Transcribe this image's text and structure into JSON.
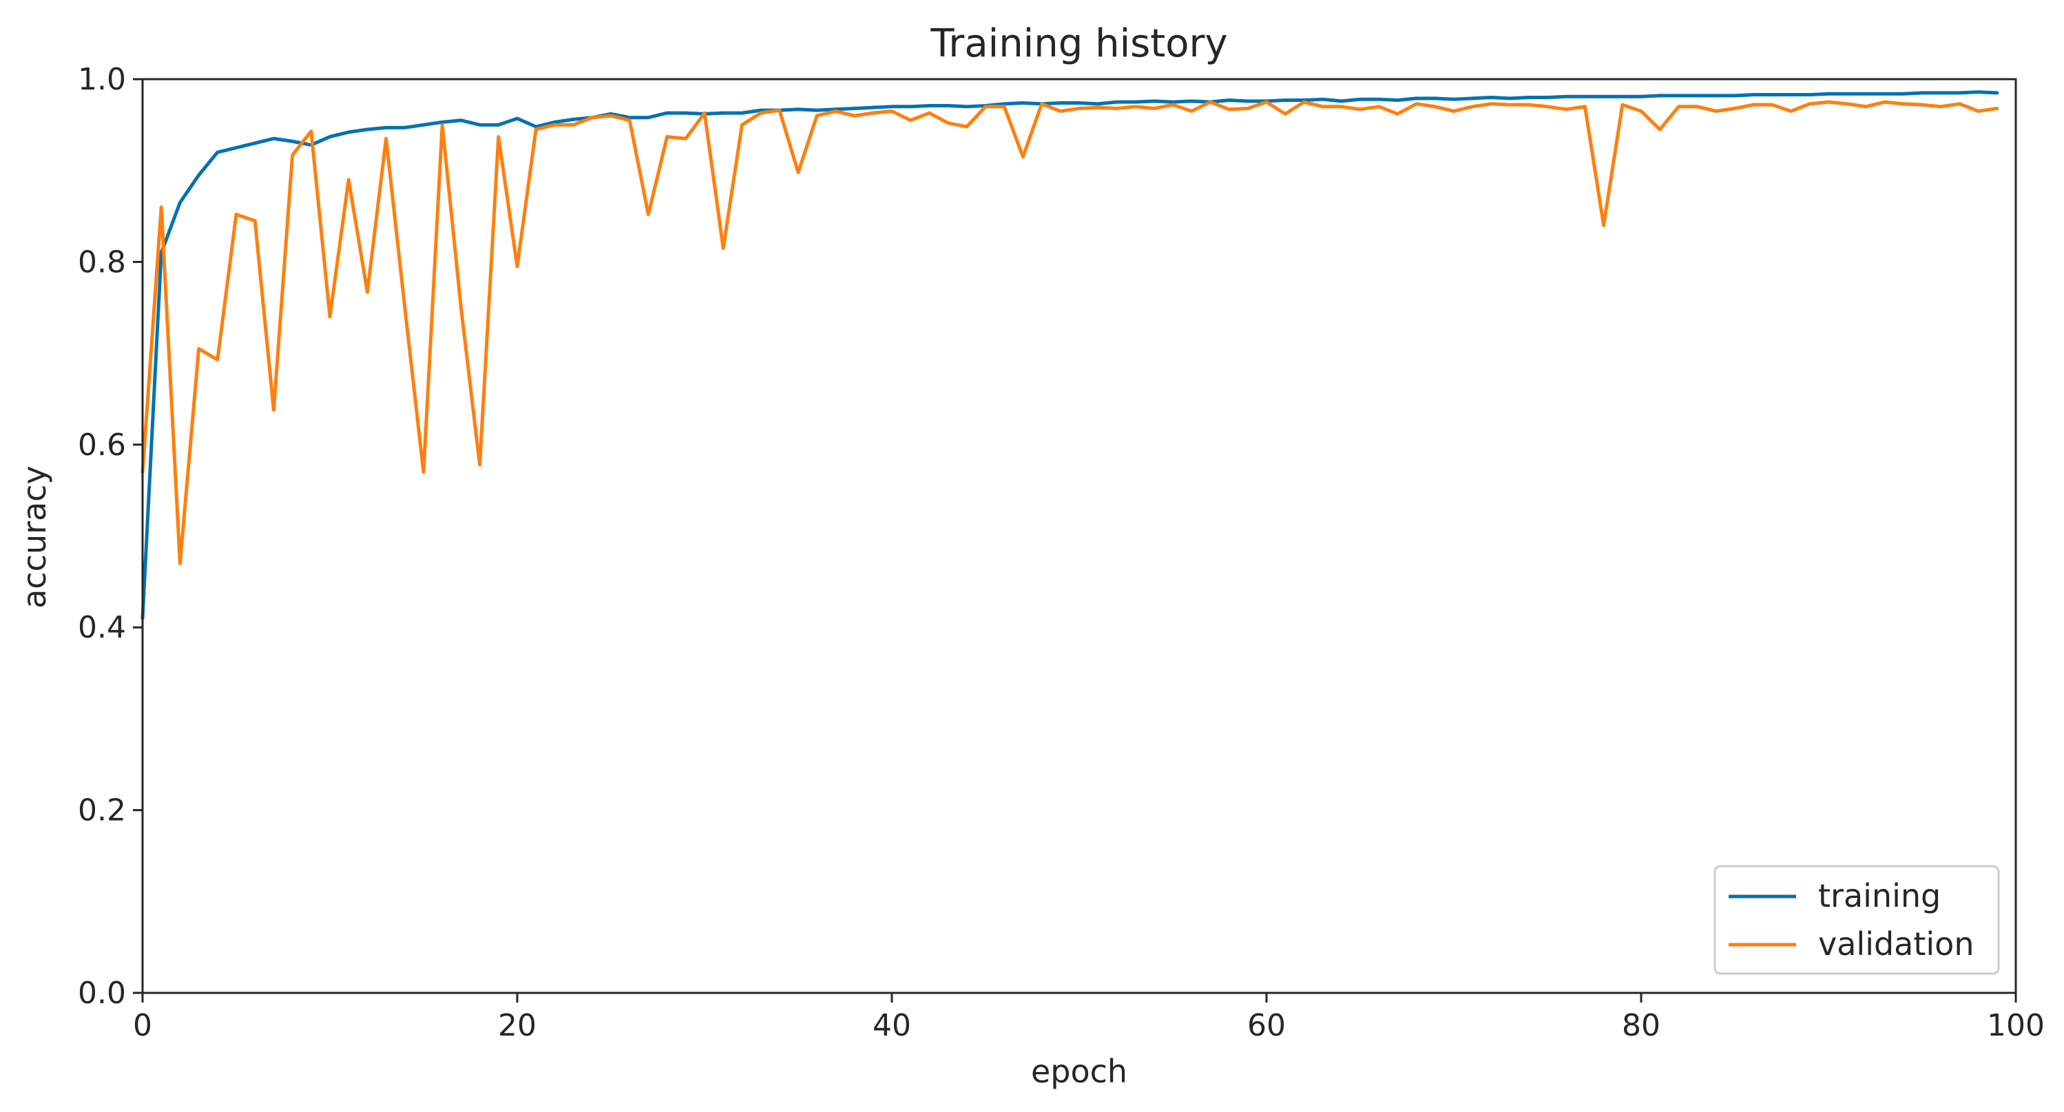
{
  "chart_data": {
    "type": "line",
    "title": "Training history",
    "xlabel": "epoch",
    "ylabel": "accuracy",
    "xlim": [
      0,
      100
    ],
    "ylim": [
      0.0,
      1.0
    ],
    "xticks": [
      0,
      20,
      40,
      60,
      80,
      100
    ],
    "xtick_labels": [
      "0",
      "20",
      "40",
      "60",
      "80",
      "100"
    ],
    "yticks": [
      0.0,
      0.2,
      0.4,
      0.6,
      0.8,
      1.0
    ],
    "ytick_labels": [
      "0.0",
      "0.2",
      "0.4",
      "0.6",
      "0.8",
      "1.0"
    ],
    "grid": false,
    "legend_position": "lower-right",
    "series": [
      {
        "name": "training",
        "color": "#0072b2",
        "values": [
          0.41,
          0.81,
          0.865,
          0.895,
          0.92,
          0.925,
          0.93,
          0.935,
          0.932,
          0.928,
          0.937,
          0.942,
          0.945,
          0.947,
          0.947,
          0.95,
          0.953,
          0.955,
          0.95,
          0.95,
          0.957,
          0.948,
          0.953,
          0.956,
          0.958,
          0.962,
          0.958,
          0.958,
          0.963,
          0.963,
          0.962,
          0.963,
          0.963,
          0.966,
          0.966,
          0.967,
          0.966,
          0.967,
          0.968,
          0.969,
          0.97,
          0.97,
          0.971,
          0.971,
          0.97,
          0.971,
          0.973,
          0.974,
          0.973,
          0.974,
          0.974,
          0.973,
          0.975,
          0.975,
          0.976,
          0.975,
          0.976,
          0.975,
          0.977,
          0.976,
          0.976,
          0.977,
          0.977,
          0.978,
          0.976,
          0.978,
          0.978,
          0.977,
          0.979,
          0.979,
          0.978,
          0.979,
          0.98,
          0.979,
          0.98,
          0.98,
          0.981,
          0.981,
          0.981,
          0.981,
          0.981,
          0.982,
          0.982,
          0.982,
          0.982,
          0.982,
          0.983,
          0.983,
          0.983,
          0.983,
          0.984,
          0.984,
          0.984,
          0.984,
          0.984,
          0.985,
          0.985,
          0.985,
          0.986,
          0.985
        ]
      },
      {
        "name": "validation",
        "color": "#ff7f0e",
        "values": [
          0.57,
          0.86,
          0.47,
          0.705,
          0.693,
          0.852,
          0.845,
          0.638,
          0.917,
          0.943,
          0.74,
          0.89,
          0.767,
          0.935,
          0.75,
          0.57,
          0.95,
          0.75,
          0.578,
          0.937,
          0.795,
          0.945,
          0.95,
          0.95,
          0.958,
          0.96,
          0.955,
          0.852,
          0.937,
          0.935,
          0.963,
          0.815,
          0.95,
          0.963,
          0.966,
          0.898,
          0.96,
          0.965,
          0.96,
          0.963,
          0.965,
          0.955,
          0.963,
          0.952,
          0.948,
          0.97,
          0.97,
          0.915,
          0.973,
          0.965,
          0.968,
          0.969,
          0.968,
          0.97,
          0.968,
          0.972,
          0.965,
          0.975,
          0.967,
          0.968,
          0.975,
          0.962,
          0.975,
          0.97,
          0.97,
          0.967,
          0.97,
          0.962,
          0.973,
          0.97,
          0.965,
          0.97,
          0.973,
          0.972,
          0.972,
          0.97,
          0.967,
          0.97,
          0.84,
          0.972,
          0.965,
          0.945,
          0.97,
          0.97,
          0.965,
          0.968,
          0.972,
          0.972,
          0.965,
          0.973,
          0.975,
          0.973,
          0.97,
          0.975,
          0.973,
          0.972,
          0.97,
          0.973,
          0.965,
          0.968
        ]
      }
    ]
  }
}
